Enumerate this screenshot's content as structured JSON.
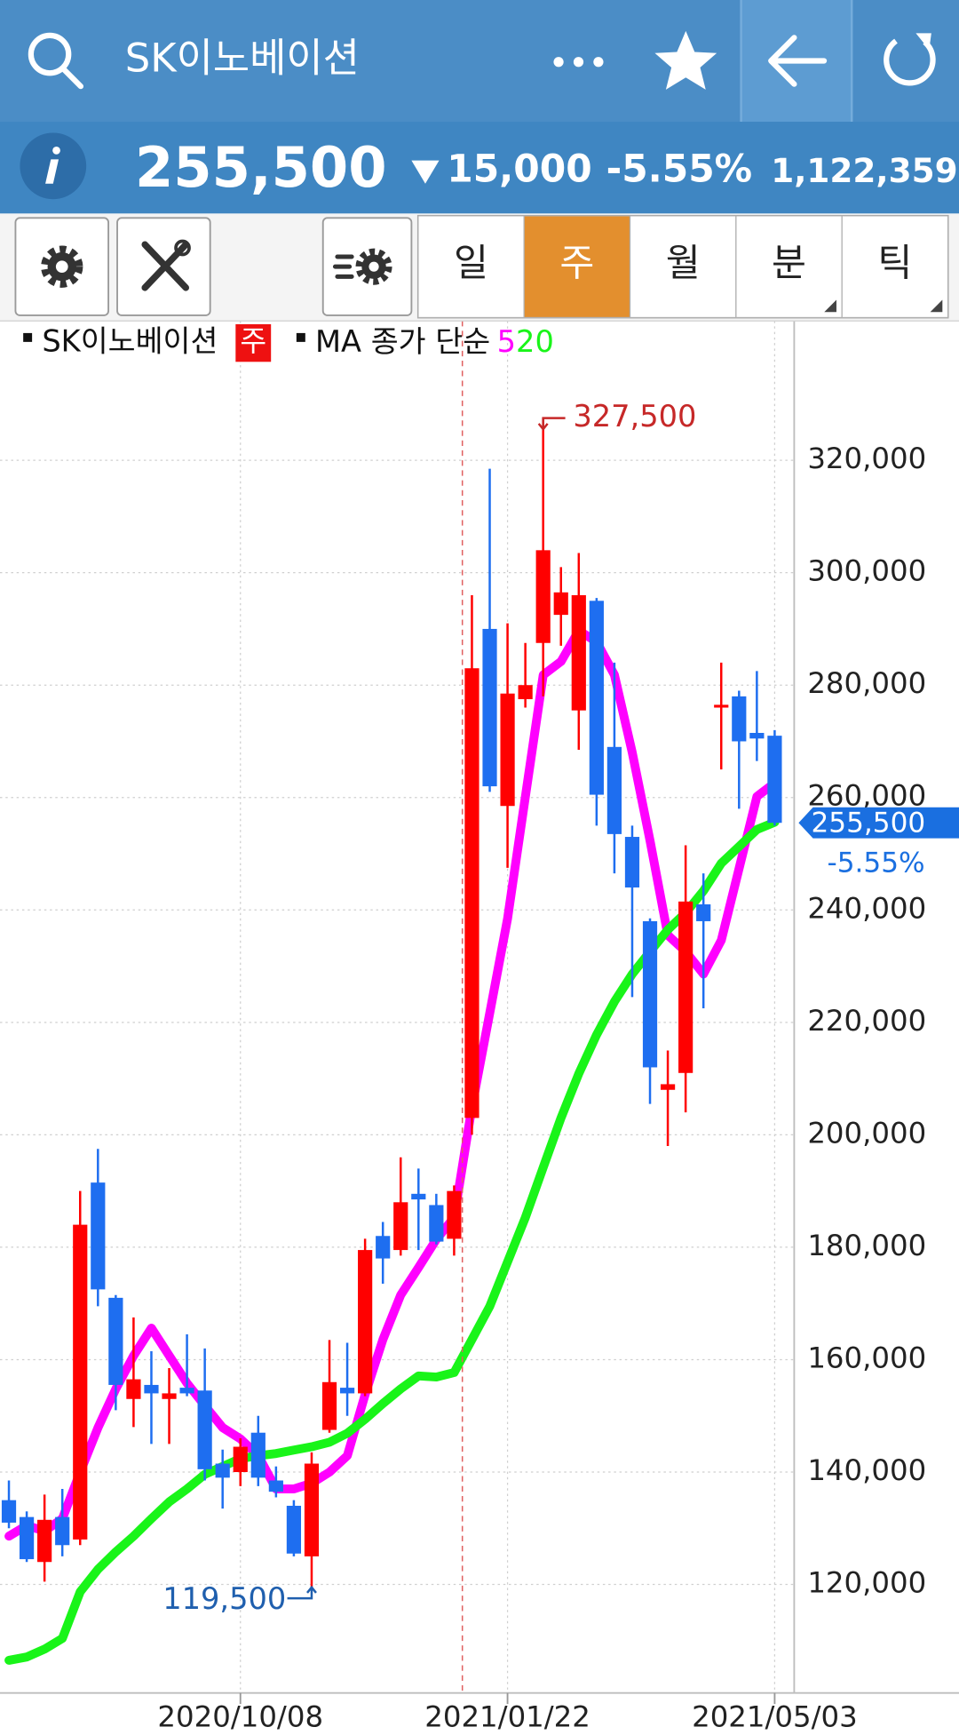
{
  "header": {
    "title": "SK이노베이션"
  },
  "quote": {
    "price": "255,500",
    "change": "15,000",
    "change_pct": "-5.55%",
    "volume": "1,122,359"
  },
  "toolbar": {
    "tabs": [
      "일",
      "주",
      "월",
      "분",
      "틱"
    ],
    "selected": 1
  },
  "chart_data": {
    "type": "candlestick",
    "legend": {
      "symbol": "SK이노베이션",
      "period": "주",
      "ma_label": "MA 종가 단순"
    },
    "categories": [
      null,
      null,
      null,
      null,
      null,
      null,
      null,
      null,
      null,
      null,
      null,
      null,
      null,
      "2020/10/08",
      null,
      null,
      null,
      null,
      null,
      null,
      null,
      null,
      null,
      null,
      null,
      null,
      null,
      null,
      "2021/01/22",
      null,
      null,
      null,
      null,
      null,
      null,
      null,
      null,
      null,
      null,
      null,
      null,
      null,
      null,
      "2021/05/03"
    ],
    "open": [
      135000,
      132000,
      124000,
      132000,
      128000,
      191500,
      171000,
      153000,
      155500,
      153000,
      155000,
      154500,
      141500,
      140000,
      147000,
      138500,
      134000,
      125000,
      147500,
      155000,
      154000,
      182000,
      179500,
      189500,
      187500,
      181500,
      203000,
      290000,
      258500,
      277500,
      287500,
      292500,
      275500,
      295000,
      269000,
      253000,
      238000,
      208000,
      211000,
      241000,
      276000,
      278000,
      271500,
      271000
    ],
    "high": [
      138500,
      133000,
      136000,
      137000,
      190000,
      197500,
      171500,
      167500,
      161500,
      158500,
      164500,
      162000,
      144000,
      146000,
      150000,
      141000,
      135000,
      143500,
      163500,
      163000,
      181500,
      184500,
      196000,
      194000,
      189500,
      191000,
      296000,
      318500,
      291000,
      287500,
      327500,
      301000,
      303500,
      295500,
      284000,
      255000,
      238500,
      215000,
      251500,
      246500,
      284000,
      279000,
      282500,
      272000
    ],
    "low": [
      130000,
      124000,
      120500,
      125000,
      127000,
      169500,
      151000,
      148000,
      145000,
      145000,
      153500,
      138500,
      133500,
      137500,
      137500,
      135500,
      125000,
      119500,
      147000,
      150000,
      153500,
      173500,
      178500,
      179500,
      180500,
      178500,
      200000,
      261000,
      247500,
      276000,
      278000,
      287000,
      268500,
      255000,
      246500,
      224500,
      205500,
      198000,
      204000,
      222500,
      265000,
      258000,
      266500,
      255000
    ],
    "close": [
      131000,
      124500,
      131500,
      127000,
      184000,
      172500,
      155500,
      156500,
      154000,
      154000,
      154000,
      140500,
      139000,
      144500,
      139000,
      136500,
      125500,
      141500,
      156000,
      154000,
      179500,
      178000,
      188000,
      188500,
      181000,
      190000,
      283000,
      262000,
      278500,
      280000,
      304000,
      296500,
      296000,
      260500,
      253500,
      244000,
      212000,
      209000,
      241500,
      238000,
      276500,
      270000,
      270500,
      255500
    ],
    "up_color": "#ff0000",
    "down_color": "#1e6ef0",
    "series": [
      {
        "name": "5",
        "color": "#ff00ff",
        "values": [
          128600,
          130500,
          129500,
          131700,
          140000,
          147900,
          154800,
          160700,
          165600,
          160700,
          155800,
          151800,
          147900,
          145900,
          142900,
          137000,
          137000,
          138000,
          140000,
          142900,
          153800,
          163600,
          171500,
          176400,
          181400,
          185300,
          205000,
          221700,
          238500,
          260200,
          281800,
          284200,
          289700,
          287700,
          281800,
          268000,
          252300,
          235500,
          232600,
          228600,
          234600,
          247400,
          260200,
          262600
        ]
      },
      {
        "name": "20",
        "color": "#19f419",
        "values": [
          106500,
          107100,
          108500,
          110400,
          118700,
          122700,
          125800,
          128600,
          131700,
          134700,
          137000,
          139600,
          141000,
          142400,
          142900,
          143300,
          143900,
          144500,
          145300,
          146900,
          149400,
          152200,
          154800,
          157100,
          156900,
          157700,
          163600,
          169500,
          177400,
          185300,
          194200,
          203000,
          210900,
          217800,
          223700,
          228600,
          232600,
          236500,
          239500,
          243400,
          248300,
          251300,
          254300,
          255600
        ]
      }
    ],
    "ylim": [
      100700,
      344800
    ],
    "yticks": [
      {
        "value": 120000,
        "label": "120,000"
      },
      {
        "value": 140000,
        "label": "140,000"
      },
      {
        "value": 160000,
        "label": "160,000"
      },
      {
        "value": 180000,
        "label": "180,000"
      },
      {
        "value": 200000,
        "label": "200,000"
      },
      {
        "value": 220000,
        "label": "220,000"
      },
      {
        "value": 240000,
        "label": "240,000"
      },
      {
        "value": 260000,
        "label": "260,000"
      },
      {
        "value": 280000,
        "label": "280,000"
      },
      {
        "value": 300000,
        "label": "300,000"
      },
      {
        "value": 320000,
        "label": "320,000"
      }
    ],
    "annotations": [
      {
        "value": 327500,
        "label": "327,500"
      },
      {
        "value": 119500,
        "label": "119,500"
      }
    ],
    "grid": true
  }
}
